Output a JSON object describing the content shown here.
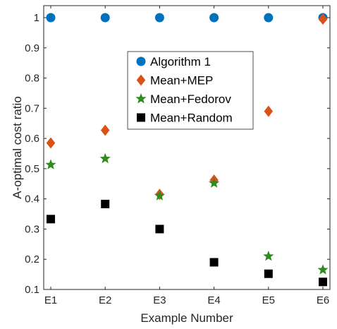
{
  "chart_data": {
    "type": "scatter",
    "title": "",
    "xlabel": "Example Number",
    "ylabel": "A-optimal cost ratio",
    "categories": [
      "E1",
      "E2",
      "E3",
      "E4",
      "E5",
      "E6"
    ],
    "ylim": [
      0.1,
      1.0
    ],
    "yticks": [
      0.1,
      0.2,
      0.3,
      0.4,
      0.5,
      0.6,
      0.7,
      0.8,
      0.9,
      1
    ],
    "ytick_labels": [
      "0.1",
      "0.2",
      "0.3",
      "0.4",
      "0.5",
      "0.6",
      "0.7",
      "0.8",
      "0.9",
      "1"
    ],
    "grid": false,
    "legend_position": "top-center",
    "series": [
      {
        "name": "Algorithm 1",
        "marker": "circle",
        "color": "#0072BD",
        "values": [
          1.0,
          1.0,
          1.0,
          1.0,
          1.0,
          1.0
        ]
      },
      {
        "name": "Mean+MEP",
        "marker": "diamond",
        "color": "#D95319",
        "values": [
          0.585,
          0.627,
          0.415,
          0.462,
          0.69,
          0.995
        ]
      },
      {
        "name": "Mean+Fedorov",
        "marker": "star",
        "color": "#2E8B1E",
        "values": [
          0.513,
          0.533,
          0.41,
          0.452,
          0.21,
          0.165
        ]
      },
      {
        "name": "Mean+Random",
        "marker": "square",
        "color": "#000000",
        "values": [
          0.333,
          0.383,
          0.3,
          0.19,
          0.152,
          0.125
        ]
      }
    ]
  }
}
